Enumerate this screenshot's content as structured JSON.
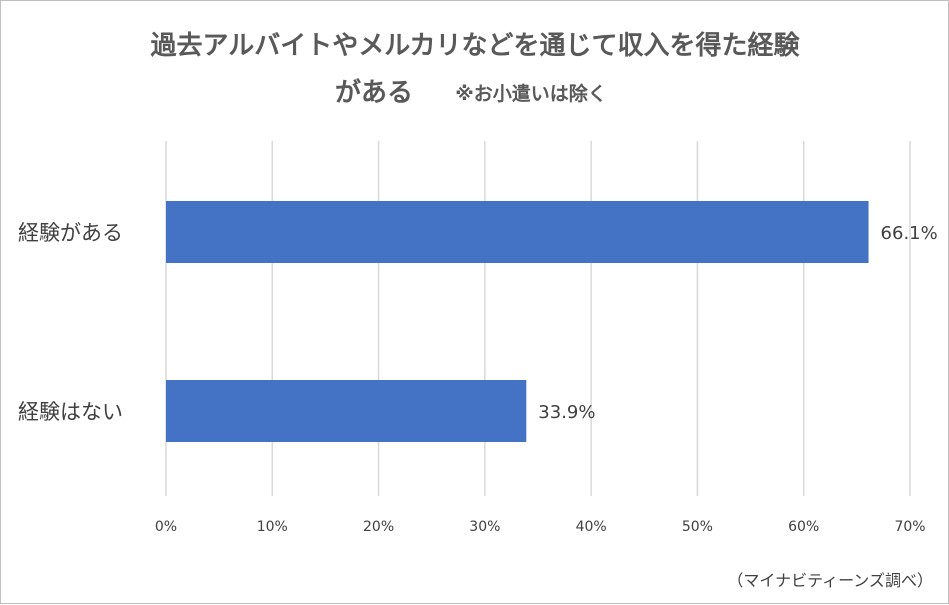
{
  "chart_data": {
    "type": "bar",
    "orientation": "horizontal",
    "title_line1": "過去アルバイトやメルカリなどを通じて収入を得た経験",
    "title_line2": "がある",
    "title_note": "※お小遣いは除く",
    "categories": [
      "経験がある",
      "経験はない"
    ],
    "values": [
      66.1,
      33.9
    ],
    "data_labels": [
      "66.1%",
      "33.9%"
    ],
    "xlim": [
      0,
      70
    ],
    "x_ticks": [
      0,
      10,
      20,
      30,
      40,
      50,
      60,
      70
    ],
    "x_tick_labels": [
      "0%",
      "10%",
      "20%",
      "30%",
      "40%",
      "50%",
      "60%",
      "70%"
    ],
    "grid": true,
    "bar_color": "#4472c4",
    "source": "（マイナビティーンズ調べ）"
  }
}
